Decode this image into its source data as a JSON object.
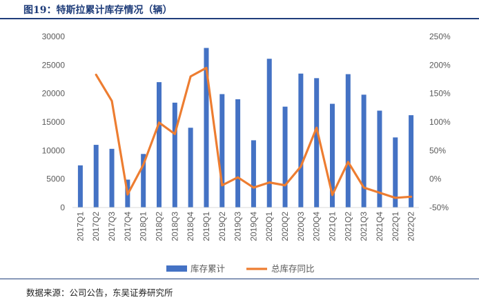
{
  "figure": {
    "title": "图19：特斯拉累计库存情况（辆）",
    "source": "数据来源：公司公告，东吴证券研究所"
  },
  "chart_data": {
    "type": "bar",
    "categories": [
      "2017Q1",
      "2017Q2",
      "2017Q3",
      "2017Q4",
      "2018Q1",
      "2018Q2",
      "2018Q3",
      "2018Q4",
      "2019Q1",
      "2019Q2",
      "2019Q3",
      "2019Q4",
      "2020Q1",
      "2020Q2",
      "2020Q3",
      "2020Q4",
      "2021Q1",
      "2021Q2",
      "2021Q3",
      "2021Q4",
      "2022Q1",
      "2022Q2"
    ],
    "series": [
      {
        "name": "库存累计",
        "type": "bar",
        "axis": "left",
        "color": "#4472C4",
        "values": [
          7400,
          11000,
          10300,
          4900,
          9400,
          22000,
          18400,
          14000,
          28000,
          19900,
          19000,
          11800,
          26100,
          17700,
          23500,
          22700,
          18200,
          23400,
          19800,
          17000,
          12300,
          16200
        ]
      },
      {
        "name": "总库存同比",
        "type": "line",
        "axis": "right",
        "color": "#ED7D31",
        "values": [
          null,
          1.83,
          1.37,
          -0.27,
          0.25,
          0.99,
          0.79,
          1.8,
          1.95,
          -0.11,
          0.03,
          -0.15,
          -0.06,
          -0.11,
          0.22,
          0.9,
          -0.28,
          0.3,
          -0.15,
          -0.24,
          -0.33,
          -0.31
        ]
      }
    ],
    "y_left": {
      "min": 0,
      "max": 30000,
      "step": 5000,
      "ticks": [
        "0",
        "5000",
        "10000",
        "15000",
        "20000",
        "25000",
        "30000"
      ]
    },
    "y_right": {
      "min": -0.5,
      "max": 2.5,
      "step": 0.5,
      "ticks": [
        "-50%",
        "0%",
        "50%",
        "100%",
        "150%",
        "200%",
        "250%"
      ]
    },
    "grid": false,
    "legend_position": "bottom"
  }
}
